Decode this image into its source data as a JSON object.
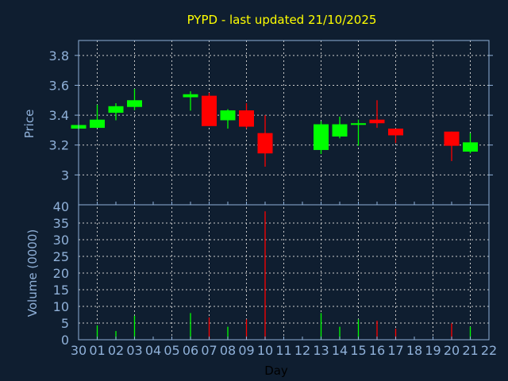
{
  "chart_data": {
    "type": "candlestick",
    "title": "PYPD - last updated 21/10/2025",
    "xlabel": "Day",
    "ylabel": "Price",
    "volume_label": "Volume (0000)",
    "x_ticks": [
      "30",
      "01",
      "02",
      "03",
      "04",
      "05",
      "06",
      "07",
      "08",
      "09",
      "10",
      "11",
      "12",
      "13",
      "14",
      "15",
      "16",
      "17",
      "18",
      "19",
      "20",
      "21",
      "22"
    ],
    "price_ticks": [
      {
        "v": 3,
        "label": "3"
      },
      {
        "v": 3.2,
        "label": "3.2"
      },
      {
        "v": 3.4,
        "label": "3.4"
      },
      {
        "v": 3.6,
        "label": "3.6"
      },
      {
        "v": 3.8,
        "label": "3.8"
      }
    ],
    "price_range": [
      2.8,
      3.9
    ],
    "volume_ticks": [
      0,
      5,
      10,
      15,
      20,
      25,
      30,
      35,
      40
    ],
    "volume_range": [
      0,
      40
    ],
    "grid": true,
    "colors": {
      "up": "#00ff00",
      "down": "#ff0000",
      "title": "#ffff00",
      "axis": "#8fb0d8",
      "grid": "#c8c8c8",
      "background": "#0f1e30"
    },
    "candles": [
      {
        "day": "30",
        "open": 3.31,
        "high": 3.334,
        "low": 3.307,
        "close": 3.334,
        "volume": 0
      },
      {
        "day": "01",
        "open": 3.315,
        "high": 3.47,
        "low": 3.315,
        "close": 3.37,
        "volume": 4.3
      },
      {
        "day": "02",
        "open": 3.416,
        "high": 3.48,
        "low": 3.366,
        "close": 3.46,
        "volume": 2.6
      },
      {
        "day": "03",
        "open": 3.455,
        "high": 3.576,
        "low": 3.433,
        "close": 3.5,
        "volume": 7.2
      },
      {
        "day": "06",
        "open": 3.52,
        "high": 3.56,
        "low": 3.43,
        "close": 3.54,
        "volume": 8
      },
      {
        "day": "07",
        "open": 3.53,
        "high": 3.55,
        "low": 3.327,
        "close": 3.327,
        "volume": 6.7
      },
      {
        "day": "08",
        "open": 3.366,
        "high": 3.44,
        "low": 3.31,
        "close": 3.432,
        "volume": 3.9
      },
      {
        "day": "09",
        "open": 3.432,
        "high": 3.48,
        "low": 3.31,
        "close": 3.323,
        "volume": 6.1
      },
      {
        "day": "10",
        "open": 3.28,
        "high": 3.4,
        "low": 3.055,
        "close": 3.144,
        "volume": 38.5
      },
      {
        "day": "13",
        "open": 3.167,
        "high": 3.36,
        "low": 3.14,
        "close": 3.339,
        "volume": 8
      },
      {
        "day": "14",
        "open": 3.257,
        "high": 3.39,
        "low": 3.245,
        "close": 3.339,
        "volume": 3.9
      },
      {
        "day": "15",
        "open": 3.335,
        "high": 3.37,
        "low": 3.195,
        "close": 3.346,
        "volume": 6.1
      },
      {
        "day": "16",
        "open": 3.37,
        "high": 3.5,
        "low": 3.315,
        "close": 3.346,
        "volume": 5.7
      },
      {
        "day": "17",
        "open": 3.31,
        "high": 3.31,
        "low": 3.214,
        "close": 3.265,
        "volume": 3.3
      },
      {
        "day": "20",
        "open": 3.29,
        "high": 3.29,
        "low": 3.093,
        "close": 3.195,
        "volume": 4.9
      },
      {
        "day": "21",
        "open": 3.156,
        "high": 3.28,
        "low": 3.144,
        "close": 3.218,
        "volume": 3.9
      }
    ]
  }
}
